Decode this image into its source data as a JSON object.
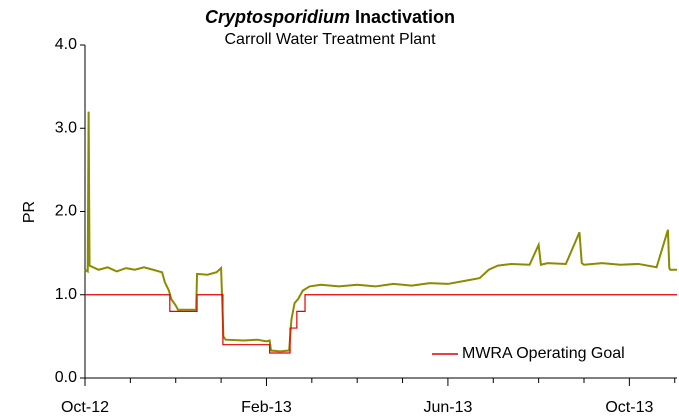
{
  "chart_data": {
    "type": "line",
    "title": "Cryptosporidium Inactivation",
    "subtitle": "Carroll Water Treatment Plant",
    "ylabel": "PR",
    "xlim": [
      0,
      13.05
    ],
    "xticks": [
      {
        "value": 0,
        "label": "Oct-12"
      },
      {
        "value": 4,
        "label": "Feb-13"
      },
      {
        "value": 8,
        "label": "Jun-13"
      },
      {
        "value": 12,
        "label": "Oct-13"
      }
    ],
    "minor_xticks": [
      1,
      2,
      3,
      5,
      6,
      7,
      9,
      10,
      11,
      13
    ],
    "ylim": [
      0,
      4
    ],
    "yticks": [
      {
        "value": 0,
        "label": "0.0"
      },
      {
        "value": 1,
        "label": "1.0"
      },
      {
        "value": 2,
        "label": "2.0"
      },
      {
        "value": 3,
        "label": "3.0"
      },
      {
        "value": 4,
        "label": "4.0"
      }
    ],
    "grid": false,
    "legend": "lower right",
    "series": [
      {
        "color": "#8b8b00",
        "x": [
          0,
          0.06,
          0.08,
          0.1,
          0.3,
          0.5,
          0.7,
          0.9,
          1.1,
          1.3,
          1.5,
          1.7,
          1.76,
          1.85,
          1.9,
          2.0,
          2.05,
          2.3,
          2.45,
          2.47,
          2.7,
          2.9,
          3.0,
          3.05,
          3.1,
          3.5,
          3.8,
          4.0,
          4.07,
          4.1,
          4.3,
          4.5,
          4.55,
          4.62,
          4.7,
          4.8,
          4.95,
          5.2,
          5.6,
          6.0,
          6.4,
          6.8,
          7.2,
          7.6,
          8.0,
          8.4,
          8.7,
          8.9,
          9.1,
          9.4,
          9.8,
          10.0,
          10.05,
          10.2,
          10.6,
          10.9,
          10.95,
          11.0,
          11.4,
          11.8,
          12.2,
          12.6,
          12.85,
          12.88,
          12.9,
          13.05
        ],
        "values": [
          1.3,
          1.28,
          3.2,
          1.35,
          1.3,
          1.33,
          1.28,
          1.32,
          1.3,
          1.33,
          1.3,
          1.27,
          1.15,
          1.05,
          0.95,
          0.87,
          0.82,
          0.82,
          0.82,
          1.25,
          1.24,
          1.27,
          1.32,
          0.5,
          0.46,
          0.45,
          0.46,
          0.44,
          0.45,
          0.33,
          0.32,
          0.33,
          0.7,
          0.9,
          0.95,
          1.05,
          1.1,
          1.12,
          1.1,
          1.12,
          1.1,
          1.13,
          1.11,
          1.14,
          1.13,
          1.17,
          1.2,
          1.3,
          1.35,
          1.37,
          1.36,
          1.6,
          1.36,
          1.38,
          1.37,
          1.75,
          1.38,
          1.36,
          1.38,
          1.36,
          1.37,
          1.33,
          1.78,
          1.32,
          1.3,
          1.3
        ]
      },
      {
        "name": "MWRA Operating Goal",
        "color": "#e00000",
        "x": [
          0,
          1.87,
          1.87,
          2.47,
          2.47,
          3.04,
          3.04,
          4.07,
          4.07,
          4.52,
          4.52,
          4.67,
          4.67,
          4.85,
          4.85,
          13.05
        ],
        "values": [
          1,
          1,
          0.8,
          0.8,
          1,
          1,
          0.4,
          0.4,
          0.3,
          0.3,
          0.6,
          0.6,
          0.8,
          0.8,
          1,
          1
        ]
      }
    ]
  }
}
